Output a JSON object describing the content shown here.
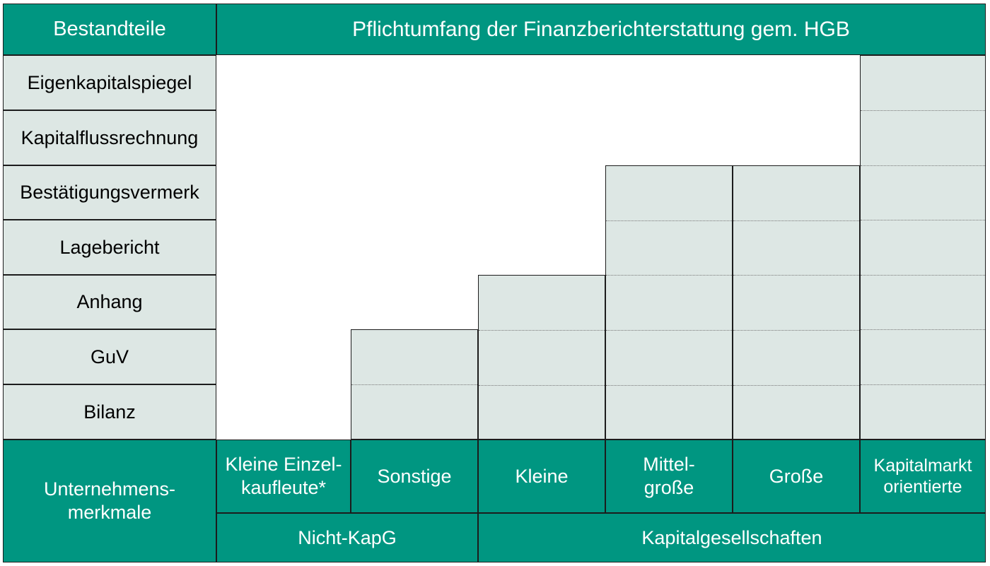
{
  "header": {
    "left": "Bestandteile",
    "right": "Pflichtumfang der Finanzberichterstattung gem. HGB"
  },
  "rows": [
    "Eigenkapitalspiegel",
    "Kapitalflussrechnung",
    "Bestätigungsvermerk",
    "Lagebericht",
    "Anhang",
    "GuV",
    "Bilanz"
  ],
  "footer": {
    "left_label": "Unternehmens-\nmerkmale",
    "categories": [
      "Kleine Einzel-\nkaufleute*",
      "Sonstige",
      "Kleine",
      "Mittel-\ngroße",
      "Große",
      "Kapitalmarkt\norientierte"
    ],
    "groups": [
      "Nicht-KapG",
      "Kapitalgesellschaften"
    ]
  },
  "required_components_count": [
    0,
    2,
    3,
    5,
    5,
    7
  ],
  "colors": {
    "accent": "#009681",
    "fill": "#dde7e4",
    "border": "#1c1c1c"
  }
}
